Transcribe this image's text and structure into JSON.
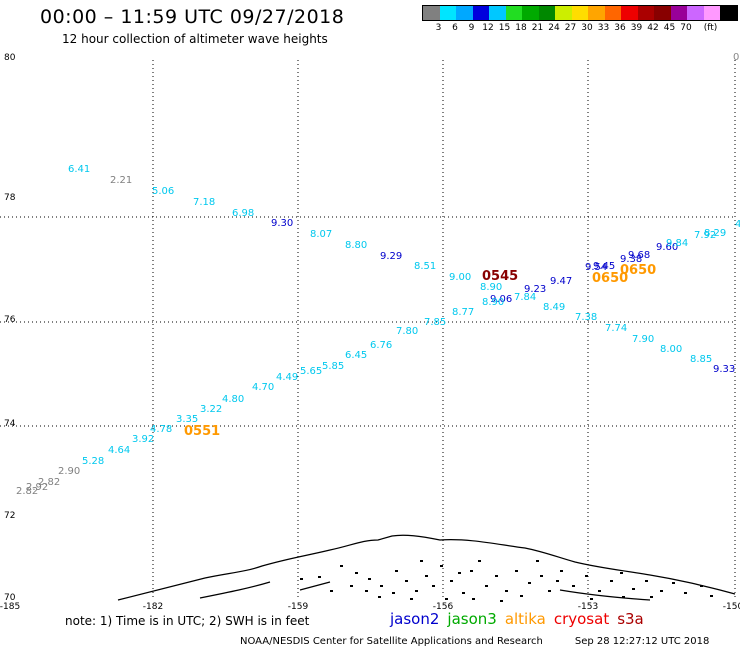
{
  "header": {
    "title": "00:00 – 11:59 UTC 09/27/2018",
    "subtitle": "12 hour collection of altimeter wave heights"
  },
  "colorbar": {
    "colors": [
      "#808080",
      "#00e5ff",
      "#00a8ff",
      "#0000dd",
      "#00c8ff",
      "#22dd22",
      "#00aa00",
      "#008800",
      "#ccee00",
      "#ffdd00",
      "#ffa500",
      "#ff6600",
      "#ee0000",
      "#aa0000",
      "#880000",
      "#990099",
      "#cc66ff",
      "#ff99ff",
      "#000000"
    ],
    "labels": [
      "3",
      "6",
      "9",
      "12",
      "15",
      "18",
      "21",
      "24",
      "27",
      "30",
      "33",
      "36",
      "39",
      "42",
      "45",
      "70",
      "(ft)"
    ],
    "label_after_swatch": [
      1,
      2,
      3,
      4,
      5,
      6,
      7,
      8,
      9,
      10,
      11,
      12,
      13,
      14,
      15,
      16,
      17
    ]
  },
  "axes": {
    "lat_ticks": [
      "80",
      "78",
      "76",
      "74",
      "72",
      "70"
    ],
    "lon_ticks": [
      "-185",
      "-182",
      "-159",
      "-156",
      "-153",
      "-150"
    ],
    "corner_right_top": "0"
  },
  "tracks": {
    "t1": {
      "values": [
        "6.41",
        "2.21",
        "5.06",
        "7.18",
        "6.98",
        "9.30",
        "8.07",
        "8.80",
        "9.29",
        "8.51",
        "9.00",
        "8.90",
        "9.06",
        "9.23",
        "9.47",
        "9.54",
        "9.45",
        "9.38",
        "9.68",
        "9.60",
        "9.84",
        "7.92",
        "8.29",
        "4"
      ],
      "colors": [
        "#00c8ee",
        "#808080",
        "#00c8ee",
        "#00c8ee",
        "#00c8ee",
        "#0000cc",
        "#00c8ee",
        "#00c8ee",
        "#0000cc",
        "#00c8ee",
        "#00c8ee",
        "#00c8ee",
        "#0000cc",
        "#0000cc",
        "#0000cc",
        "#0000cc",
        "#0000cc",
        "#0000cc",
        "#0000cc",
        "#0000cc",
        "#00c8ee",
        "#00c8ee",
        "#00c8ee",
        "#00c8ee"
      ]
    },
    "t2": {
      "values": [
        "2.82",
        "2.92",
        "2.82",
        "2.90",
        "5.28",
        "4.64",
        "3.92",
        "4.78",
        "3.35",
        "3.22",
        "4.80",
        "4.70",
        "4.49",
        "5.65",
        "5.85",
        "6.45",
        "6.76",
        "7.80",
        "7.85",
        "8.77",
        "8.90",
        "7.84",
        "8.49",
        "7.38",
        "7.74",
        "7.90",
        "8.00",
        "8.85",
        "9.33"
      ],
      "colors": [
        "#808080",
        "#808080",
        "#808080",
        "#808080",
        "#00c8ee",
        "#00c8ee",
        "#00c8ee",
        "#00c8ee",
        "#00c8ee",
        "#00c8ee",
        "#00c8ee",
        "#00c8ee",
        "#00c8ee",
        "#00c8ee",
        "#00c8ee",
        "#00c8ee",
        "#00c8ee",
        "#00c8ee",
        "#00c8ee",
        "#00c8ee",
        "#00c8ee",
        "#00c8ee",
        "#00c8ee",
        "#00c8ee",
        "#00c8ee",
        "#00c8ee",
        "#00c8ee",
        "#00c8ee",
        "#0000cc"
      ]
    }
  },
  "time_labels": [
    {
      "text": "0545",
      "color": "#880000"
    },
    {
      "text": "0650",
      "color": "#ff9900"
    },
    {
      "text": "0650",
      "color": "#ff9900"
    },
    {
      "text": "0551",
      "color": "#ff9900"
    }
  ],
  "footer": {
    "note": "note: 1) Time is in UTC; 2) SWH is in feet",
    "satellites": [
      {
        "name": "jason2",
        "color": "#0000cc"
      },
      {
        "name": "jason3",
        "color": "#00aa00"
      },
      {
        "name": "altika",
        "color": "#ff9900"
      },
      {
        "name": "cryosat",
        "color": "#ee0000"
      },
      {
        "name": "s3a",
        "color": "#aa0000"
      }
    ],
    "credit_org": "NOAA/NESDIS Center for Satellite Applications and Research",
    "credit_time": "Sep 28 12:27:12 UTC 2018"
  }
}
